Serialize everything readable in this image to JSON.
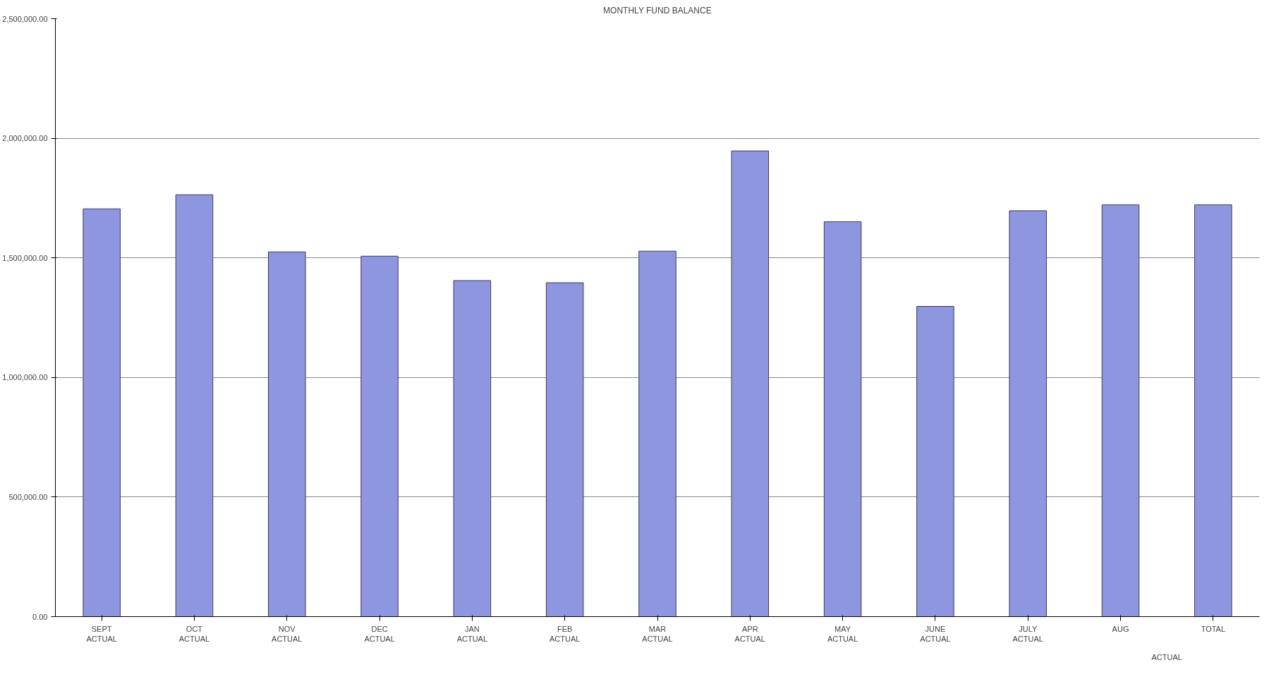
{
  "chart_data": {
    "type": "bar",
    "title": "MONTHLY FUND BALANCE",
    "categories": [
      "SEPT\nACTUAL",
      "OCT\nACTUAL",
      "NOV\nACTUAL",
      "DEC\nACTUAL",
      "JAN\nACTUAL",
      "FEB\nACTUAL",
      "MAR\nACTUAL",
      "APR\nACTUAL",
      "MAY\nACTUAL",
      "JUNE\nACTUAL",
      "JULY\nACTUAL",
      "AUG",
      "TOTAL"
    ],
    "values": [
      1705000,
      1764000,
      1525000,
      1507000,
      1405000,
      1396000,
      1528000,
      1947000,
      1651000,
      1297000,
      1697000,
      1722000,
      1722000
    ],
    "color": "#8e96e0",
    "ylim": [
      0,
      2500000
    ],
    "yticks": [
      {
        "value": 0,
        "label": "0.00"
      },
      {
        "value": 500000,
        "label": "500,000.00"
      },
      {
        "value": 1000000,
        "label": "1,000,000.00"
      },
      {
        "value": 1500000,
        "label": "1,500,000.00"
      },
      {
        "value": 2000000,
        "label": "2,000,000.00"
      },
      {
        "value": 2500000,
        "label": "2,500,000.00"
      }
    ],
    "annotations": [
      "ACTUAL"
    ],
    "grid": "y"
  }
}
